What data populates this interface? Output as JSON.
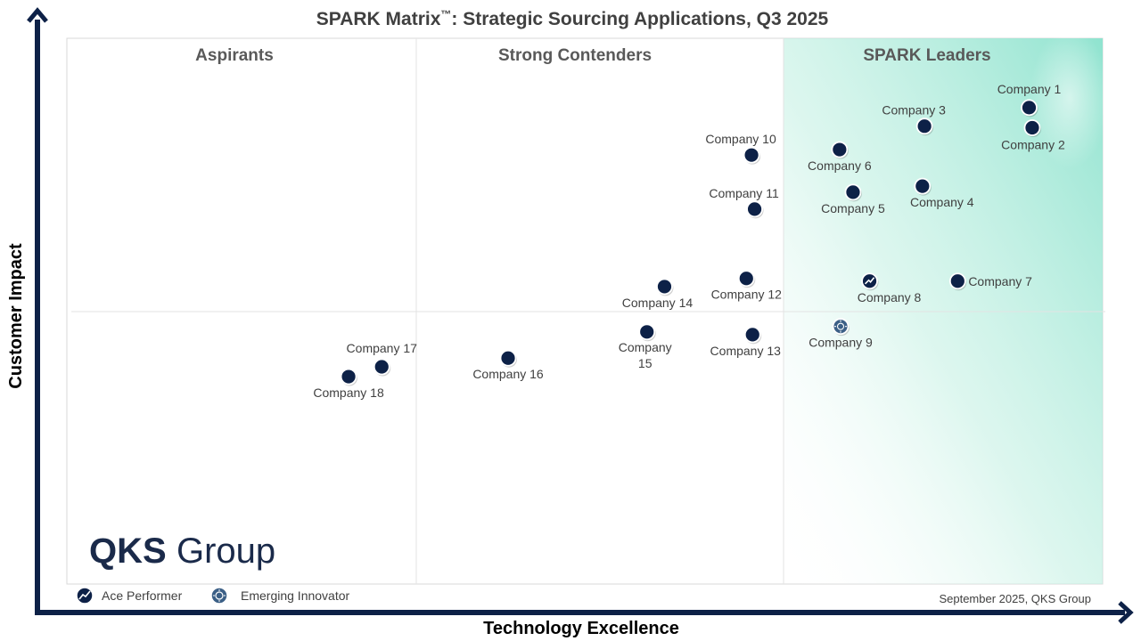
{
  "title": {
    "main": "SPARK Matrix",
    "tm": "™",
    "rest": ": Strategic Sourcing Applications, Q3 2025"
  },
  "quadrants": {
    "aspirants": "Aspirants",
    "contenders": "Strong Contenders",
    "leaders": "SPARK Leaders"
  },
  "legend": {
    "ace": "Ace Performer",
    "emerging": "Emerging Innovator"
  },
  "footer": "September 2025, QKS Group",
  "logo": {
    "bold": "QKS",
    "light": "Group"
  },
  "colors": {
    "marker": "#0d2147",
    "axis": "#0d2147",
    "leaders_zone": "#8fe3cf",
    "emerging_marker": "#3b5f86"
  },
  "chart_data": {
    "type": "scatter",
    "title": "SPARK Matrix™: Strategic Sourcing Applications, Q3 2025",
    "xlabel": "Technology Excellence",
    "ylabel": "Customer Impact",
    "xlim": [
      0,
      100
    ],
    "ylim": [
      0,
      100
    ],
    "grid": false,
    "legend_position": "bottom-left",
    "points": [
      {
        "label": "Company 1",
        "x": 92.9,
        "y": 87.3,
        "type": "company",
        "label_pos": "above"
      },
      {
        "label": "Company 2",
        "x": 93.2,
        "y": 83.6,
        "type": "company",
        "label_pos": "right-below"
      },
      {
        "label": "Company 3",
        "x": 82.8,
        "y": 83.9,
        "type": "company",
        "label_pos": "above-left"
      },
      {
        "label": "Company 4",
        "x": 82.6,
        "y": 72.9,
        "type": "company",
        "label_pos": "below-right"
      },
      {
        "label": "Company 5",
        "x": 75.9,
        "y": 71.8,
        "type": "company",
        "label_pos": "below"
      },
      {
        "label": "Company 6",
        "x": 74.6,
        "y": 79.6,
        "type": "company",
        "label_pos": "below"
      },
      {
        "label": "Company 7",
        "x": 86.0,
        "y": 55.5,
        "type": "company",
        "label_pos": "right"
      },
      {
        "label": "Company 8",
        "x": 77.5,
        "y": 55.5,
        "type": "ace",
        "label_pos": "below-right"
      },
      {
        "label": "Company 9",
        "x": 74.7,
        "y": 47.2,
        "type": "emerging",
        "label_pos": "below"
      },
      {
        "label": "Company 10",
        "x": 66.1,
        "y": 78.6,
        "type": "company",
        "label_pos": "above-left"
      },
      {
        "label": "Company 11",
        "x": 66.4,
        "y": 68.7,
        "type": "company",
        "label_pos": "above-left"
      },
      {
        "label": "Company 12",
        "x": 65.6,
        "y": 56.0,
        "type": "company",
        "label_pos": "below"
      },
      {
        "label": "Company 13",
        "x": 66.2,
        "y": 45.7,
        "type": "company",
        "label_pos": "below-left"
      },
      {
        "label": "Company 14",
        "x": 57.7,
        "y": 54.5,
        "type": "company",
        "label_pos": "below-left"
      },
      {
        "label": "Company 15",
        "x": 56.0,
        "y": 46.2,
        "type": "company",
        "label_pos": "below-2line"
      },
      {
        "label": "Company 16",
        "x": 42.6,
        "y": 41.4,
        "type": "company",
        "label_pos": "below"
      },
      {
        "label": "Company 17",
        "x": 30.4,
        "y": 39.8,
        "type": "company",
        "label_pos": "above"
      },
      {
        "label": "Company 18",
        "x": 27.2,
        "y": 38.0,
        "type": "company",
        "label_pos": "below"
      }
    ]
  }
}
